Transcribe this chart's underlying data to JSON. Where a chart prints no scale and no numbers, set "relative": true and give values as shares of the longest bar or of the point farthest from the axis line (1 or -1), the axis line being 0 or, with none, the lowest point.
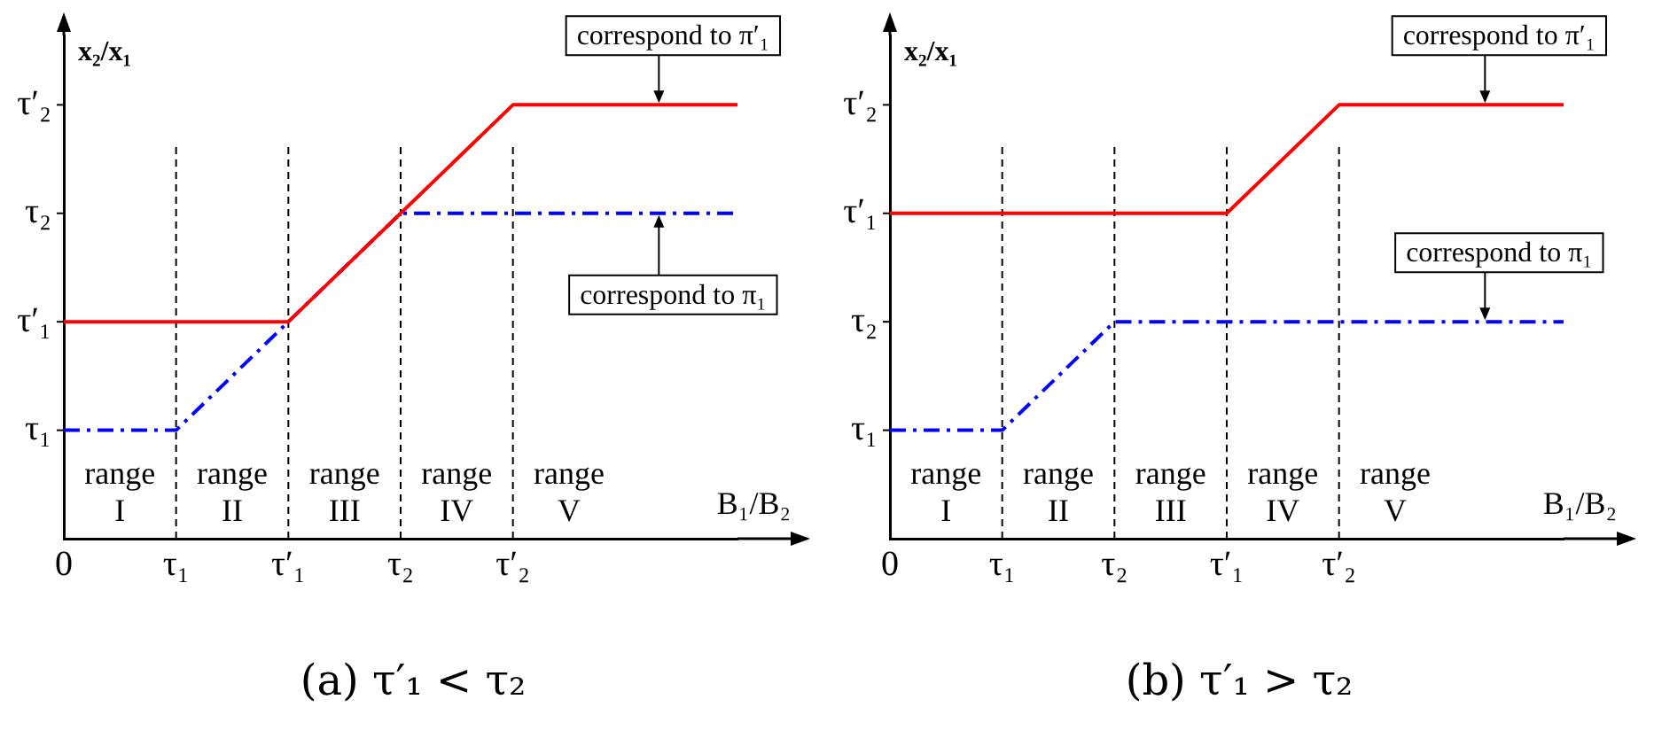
{
  "chart_data": [
    {
      "type": "line",
      "subtitle": "(a) τ′₁ < τ₂",
      "xlabel": "B₁/B₂",
      "ylabel": "x₂/x₁",
      "relative": true,
      "categories": [
        "0",
        "τ₁",
        "τ′₁",
        "τ₂",
        "τ′₂",
        null,
        null
      ],
      "grid": false,
      "legend": false,
      "marker": "none",
      "series": [
        {
          "color": "#ff0000",
          "line_style": "solid",
          "values": [
            0.5,
            0.5,
            0.5,
            0.75,
            1,
            1,
            1
          ]
        },
        {
          "color": "#0000ff",
          "line_style": "dashed",
          "values": [
            0.25,
            0.25,
            0.5,
            0.75,
            0.75,
            0.75,
            0.75
          ]
        }
      ],
      "ref_lines": [
        {
          "axis": "x",
          "value": "τ₁",
          "color": "#000000",
          "line_style": "dashed"
        },
        {
          "axis": "x",
          "value": "τ′₁",
          "color": "#000000",
          "line_style": "dashed"
        },
        {
          "axis": "x",
          "value": "τ₂",
          "color": "#000000",
          "line_style": "dashed"
        },
        {
          "axis": "x",
          "value": "τ′₂",
          "color": "#000000",
          "line_style": "dashed"
        },
        {
          "axis": "y",
          "value": 0.25,
          "label": "τ₁"
        },
        {
          "axis": "y",
          "value": 0.5,
          "label": "τ′₁"
        },
        {
          "axis": "y",
          "value": 0.75,
          "label": "τ₂"
        },
        {
          "axis": "y",
          "value": 1,
          "label": "τ′₂"
        }
      ],
      "annotations": [
        "range\nI",
        "range\nII",
        "range\nIII",
        "range\nIV",
        "range\nV",
        {
          "text": "correspond to π′₁",
          "y": 1
        },
        {
          "text": "correspond to π₁",
          "y": 0.75
        }
      ]
    },
    {
      "type": "line",
      "subtitle": "(b) τ′₁ > τ₂",
      "xlabel": "B₁/B₂",
      "ylabel": "x₂/x₁",
      "relative": true,
      "categories": [
        "0",
        "τ₁",
        "τ₂",
        "τ′₁",
        "τ′₂",
        null,
        null
      ],
      "grid": false,
      "legend": false,
      "marker": "none",
      "series": [
        {
          "color": "#ff0000",
          "line_style": "solid",
          "values": [
            0.75,
            0.75,
            0.75,
            0.75,
            1,
            1,
            1
          ]
        },
        {
          "color": "#0000ff",
          "line_style": "dashed",
          "values": [
            0.25,
            0.25,
            0.5,
            0.5,
            0.5,
            0.5,
            0.5
          ]
        }
      ],
      "ref_lines": [
        {
          "axis": "x",
          "value": "τ₁",
          "color": "#000000",
          "line_style": "dashed"
        },
        {
          "axis": "x",
          "value": "τ₂",
          "color": "#000000",
          "line_style": "dashed"
        },
        {
          "axis": "x",
          "value": "τ′₁",
          "color": "#000000",
          "line_style": "dashed"
        },
        {
          "axis": "x",
          "value": "τ′₂",
          "color": "#000000",
          "line_style": "dashed"
        },
        {
          "axis": "y",
          "value": 0.25,
          "label": "τ₁"
        },
        {
          "axis": "y",
          "value": 0.5,
          "label": "τ₂"
        },
        {
          "axis": "y",
          "value": 0.75,
          "label": "τ′₁"
        },
        {
          "axis": "y",
          "value": 1,
          "label": "τ′₂"
        }
      ],
      "annotations": [
        "range\nI",
        "range\nII",
        "range\nIII",
        "range\nIV",
        "range\nV",
        {
          "text": "correspond to π′₁",
          "y": 1
        },
        {
          "text": "correspond to π₁",
          "y": 0.5
        }
      ]
    }
  ]
}
